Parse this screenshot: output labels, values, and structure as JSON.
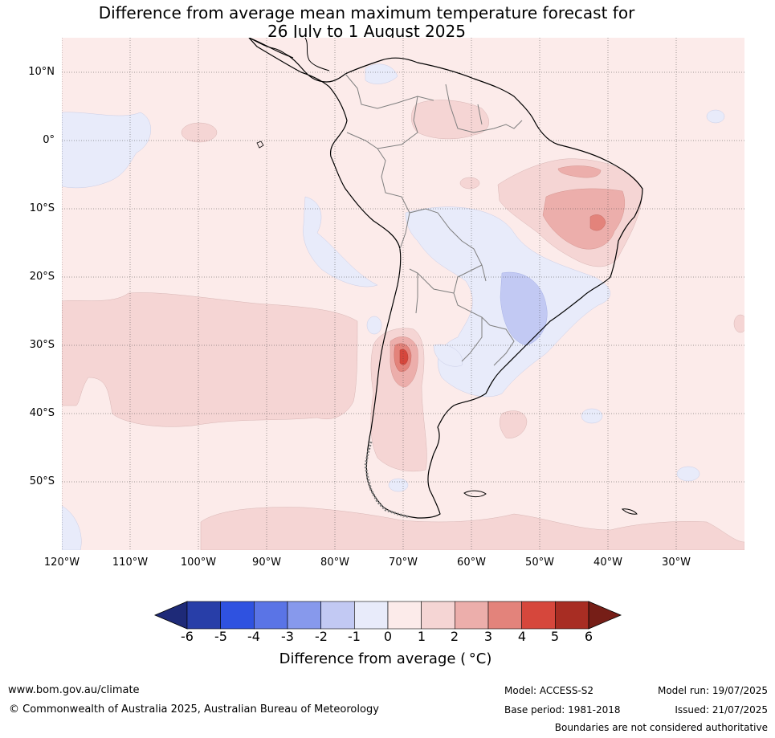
{
  "title": {
    "line1": "Difference from average mean maximum temperature forecast for",
    "line2": "26 July to 1 August 2025"
  },
  "map": {
    "lat_labels": [
      "10°N",
      "0°",
      "10°S",
      "20°S",
      "30°S",
      "40°S",
      "50°S"
    ],
    "lon_labels": [
      "120°W",
      "110°W",
      "100°W",
      "90°W",
      "80°W",
      "70°W",
      "60°W",
      "50°W",
      "40°W",
      "30°W"
    ],
    "colors": {
      "neutral_warm": "#fcebea",
      "warm_1_2": "#f5d5d4",
      "warm_2_3": "#ecaeab",
      "warm_3_4": "#e3837b",
      "warm_4_5": "#d6473c",
      "cool_m1_0": "#e8ebfa",
      "cool_m2_m1": "#c2c9f3"
    }
  },
  "colorbar": {
    "ticks": [
      "-6",
      "-5",
      "-4",
      "-3",
      "-2",
      "-1",
      "0",
      "1",
      "2",
      "3",
      "4",
      "5",
      "6"
    ],
    "colors": [
      "#283ea8",
      "#2f52e0",
      "#5a74e6",
      "#8799ec",
      "#c2c9f3",
      "#e8ebfa",
      "#fcebea",
      "#f5d5d4",
      "#ecaeab",
      "#e3837b",
      "#d6473c",
      "#a82d23"
    ],
    "under_color": "#1e2a78",
    "over_color": "#761e17",
    "label": "Difference from average ( °C)"
  },
  "footer": {
    "website": "www.bom.gov.au/climate",
    "copyright": "© Commonwealth of Australia 2025, Australian Bureau of Meteorology",
    "model": "Model: ACCESS-S2",
    "base_period": "Base period: 1981-2018",
    "model_run": "Model run: 19/07/2025",
    "issued": "Issued: 21/07/2025",
    "disclaimer": "Boundaries are not considered authoritative"
  }
}
